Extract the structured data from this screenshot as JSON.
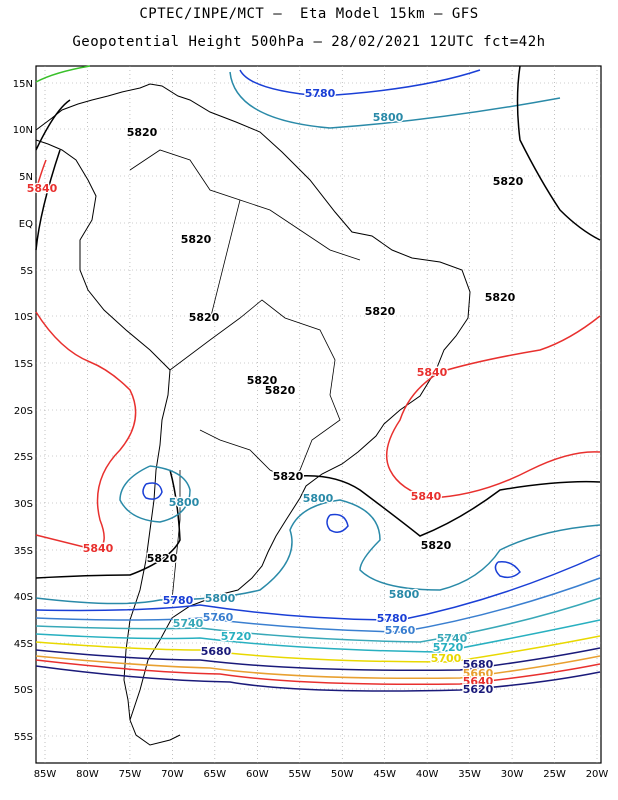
{
  "title": {
    "line1": "CPTEC/INPE/MCT –  Eta Model 15km – GFS",
    "line2": "Geopotential Height 500hPa – 28/02/2021 12UTC fct=42h"
  },
  "map": {
    "lat_labels": [
      "15N",
      "10N",
      "5N",
      "EQ",
      "5S",
      "10S",
      "15S",
      "20S",
      "25S",
      "30S",
      "35S",
      "40S",
      "45S",
      "50S",
      "55S"
    ],
    "lon_labels": [
      "85W",
      "80W",
      "75W",
      "70W",
      "65W",
      "60W",
      "55W",
      "50W",
      "45W",
      "40W",
      "35W",
      "30W",
      "25W",
      "20W"
    ],
    "grid": "dotted",
    "contour_labels": [
      {
        "text": "5780",
        "color": "#1a3fd6"
      },
      {
        "text": "5800",
        "color": "#2a8aa8"
      },
      {
        "text": "5820",
        "color": "#000000"
      },
      {
        "text": "5820",
        "color": "#000000"
      },
      {
        "text": "5820",
        "color": "#000000"
      },
      {
        "text": "5840",
        "color": "#e8302e"
      },
      {
        "text": "5820",
        "color": "#000000"
      },
      {
        "text": "5820",
        "color": "#000000"
      },
      {
        "text": "5820",
        "color": "#000000"
      },
      {
        "text": "5820",
        "color": "#000000"
      },
      {
        "text": "5820",
        "color": "#000000"
      },
      {
        "text": "5840",
        "color": "#e8302e"
      },
      {
        "text": "5820",
        "color": "#000000"
      },
      {
        "text": "5800",
        "color": "#2a8aa8"
      },
      {
        "text": "5800",
        "color": "#2a8aa8"
      },
      {
        "text": "5840",
        "color": "#e8302e"
      },
      {
        "text": "5820",
        "color": "#000000"
      },
      {
        "text": "5840",
        "color": "#e8302e"
      },
      {
        "text": "5820",
        "color": "#000000"
      },
      {
        "text": "5800",
        "color": "#2a8aa8"
      },
      {
        "text": "5780",
        "color": "#1a3fd6"
      },
      {
        "text": "5800",
        "color": "#2a8aa8"
      },
      {
        "text": "5760",
        "color": "#3a7fd0"
      },
      {
        "text": "5740",
        "color": "#38a8b8"
      },
      {
        "text": "5720",
        "color": "#28b0c0"
      },
      {
        "text": "5780",
        "color": "#1a3fd6"
      },
      {
        "text": "5760",
        "color": "#3a7fd0"
      },
      {
        "text": "5740",
        "color": "#38a8b8"
      },
      {
        "text": "5720",
        "color": "#28b0c0"
      },
      {
        "text": "5700",
        "color": "#e8d800"
      },
      {
        "text": "5680",
        "color": "#1a1a7a"
      },
      {
        "text": "5680",
        "color": "#1a1a7a"
      },
      {
        "text": "5660",
        "color": "#e8a030"
      },
      {
        "text": "5640",
        "color": "#e8302e"
      },
      {
        "text": "5620",
        "color": "#1a1a7a"
      }
    ]
  }
}
